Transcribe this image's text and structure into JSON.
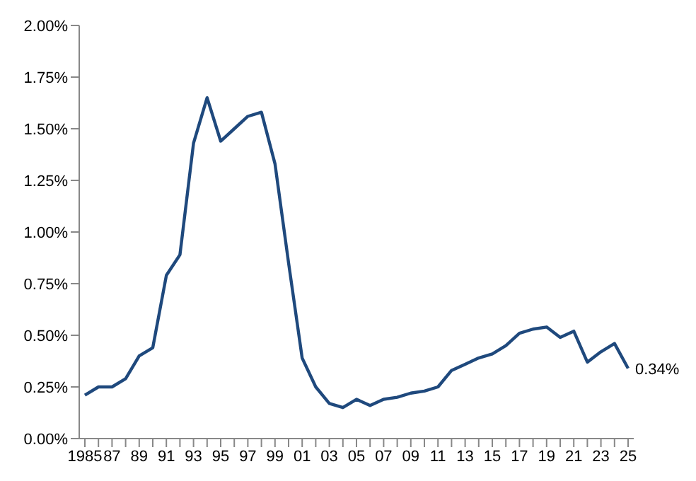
{
  "chart_data": {
    "type": "line",
    "categories": [
      "1985",
      null,
      "87",
      null,
      "89",
      null,
      "91",
      null,
      "93",
      null,
      "95",
      null,
      "97",
      null,
      "99",
      null,
      "01",
      null,
      "03",
      null,
      "05",
      null,
      "07",
      null,
      "09",
      null,
      "11",
      null,
      "13",
      null,
      "15",
      null,
      "17",
      null,
      "19",
      null,
      "21",
      null,
      "23",
      null,
      "25"
    ],
    "series": [
      {
        "color": "#1f497d",
        "values": [
          0.21,
          0.25,
          0.25,
          0.29,
          0.4,
          0.44,
          0.79,
          0.89,
          1.43,
          1.65,
          1.44,
          1.5,
          1.56,
          1.58,
          1.33,
          0.85,
          0.39,
          0.25,
          0.17,
          0.15,
          0.19,
          0.16,
          0.19,
          0.2,
          0.22,
          0.23,
          0.25,
          0.33,
          0.36,
          0.39,
          0.41,
          0.45,
          0.51,
          0.53,
          0.54,
          0.49,
          0.52,
          0.37,
          0.42,
          0.46,
          0.34
        ],
        "value_labels": [
          null,
          null,
          null,
          null,
          null,
          null,
          null,
          null,
          null,
          null,
          null,
          null,
          null,
          null,
          null,
          null,
          null,
          null,
          null,
          null,
          null,
          null,
          null,
          null,
          null,
          null,
          null,
          null,
          null,
          null,
          null,
          null,
          null,
          null,
          null,
          null,
          null,
          null,
          null,
          null,
          "0.34%"
        ]
      }
    ],
    "ylim": [
      0,
      2
    ],
    "yticks": [
      {
        "value": 0,
        "label": "0.00%"
      },
      {
        "value": 0.25,
        "label": "0.25%"
      },
      {
        "value": 0.5,
        "label": "0.50%"
      },
      {
        "value": 0.75,
        "label": "0.75%"
      },
      {
        "value": 1,
        "label": "1.00%"
      },
      {
        "value": 1.25,
        "label": "1.25%"
      },
      {
        "value": 1.5,
        "label": "1.50%"
      },
      {
        "value": 1.75,
        "label": "1.75%"
      },
      {
        "value": 2,
        "label": "2.00%"
      }
    ],
    "grid": false,
    "legend": false,
    "marker": "none",
    "line_style": "solid"
  }
}
